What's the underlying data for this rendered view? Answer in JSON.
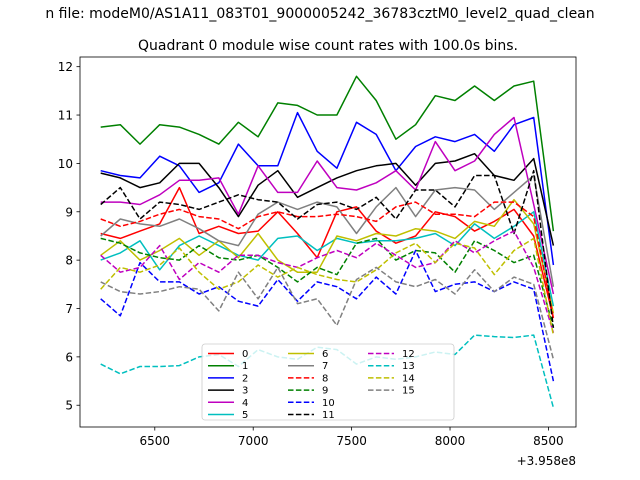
{
  "chart_data": {
    "type": "line",
    "suptitle": "n file: modeM0/AS1A11_083T01_9000005242_36783cztM0_level2_quad_clean",
    "title": "Quadrant 0 module wise count rates with 100.0s bins.",
    "xlabel": "",
    "ylabel": "",
    "x_offset_label": "+3.958e8",
    "xlim": [
      6120,
      8640
    ],
    "ylim": [
      4.55,
      12.2
    ],
    "xticks": [
      6500,
      7000,
      7500,
      8000,
      8500
    ],
    "xtick_labels": [
      "6500",
      "7000",
      "7500",
      "8000",
      "8500"
    ],
    "yticks": [
      5,
      6,
      7,
      8,
      9,
      10,
      11,
      12
    ],
    "ytick_labels": [
      "5",
      "6",
      "7",
      "8",
      "9",
      "10",
      "11",
      "12"
    ],
    "legend_position": "lower-center",
    "x": [
      6225,
      6325,
      6425,
      6525,
      6625,
      6725,
      6825,
      6925,
      7025,
      7125,
      7225,
      7325,
      7425,
      7525,
      7625,
      7725,
      7825,
      7925,
      8025,
      8125,
      8225,
      8325,
      8425,
      8525
    ],
    "series": [
      {
        "name": "0",
        "color": "#ff0000",
        "dash": "solid",
        "values": [
          8.55,
          8.45,
          8.6,
          8.75,
          9.5,
          8.55,
          8.7,
          8.55,
          8.6,
          9.0,
          8.55,
          8.05,
          9.0,
          9.1,
          8.6,
          8.35,
          8.5,
          9.0,
          8.9,
          8.6,
          8.8,
          9.05,
          8.5,
          6.8
        ]
      },
      {
        "name": "1",
        "color": "#008000",
        "dash": "solid",
        "values": [
          10.75,
          10.8,
          10.4,
          10.8,
          10.75,
          10.6,
          10.4,
          10.85,
          10.55,
          11.25,
          11.2,
          11.0,
          11.0,
          11.8,
          11.3,
          10.5,
          10.8,
          11.4,
          11.3,
          11.6,
          11.3,
          11.6,
          11.7,
          8.6
        ]
      },
      {
        "name": "2",
        "color": "#0000ff",
        "dash": "solid",
        "values": [
          9.85,
          9.75,
          9.7,
          10.15,
          9.95,
          9.4,
          9.6,
          10.4,
          9.95,
          9.95,
          11.05,
          10.25,
          9.9,
          10.85,
          10.6,
          9.85,
          10.35,
          10.55,
          10.45,
          10.6,
          10.25,
          10.8,
          10.95,
          7.9
        ]
      },
      {
        "name": "3",
        "color": "#000000",
        "dash": "solid",
        "values": [
          9.8,
          9.7,
          9.5,
          9.6,
          10.0,
          10.0,
          9.5,
          8.9,
          9.55,
          9.85,
          9.3,
          9.5,
          9.7,
          9.85,
          9.95,
          10.0,
          9.55,
          10.0,
          10.05,
          10.2,
          9.75,
          9.65,
          10.1,
          8.3
        ]
      },
      {
        "name": "4",
        "color": "#bf00bf",
        "dash": "solid",
        "values": [
          9.2,
          9.2,
          9.15,
          9.35,
          9.65,
          9.65,
          9.7,
          8.95,
          9.95,
          9.4,
          9.4,
          10.05,
          9.5,
          9.45,
          9.6,
          9.85,
          9.45,
          10.45,
          9.85,
          10.05,
          10.6,
          10.95,
          9.15,
          7.3
        ]
      },
      {
        "name": "5",
        "color": "#00bfbf",
        "dash": "solid",
        "values": [
          8.0,
          8.15,
          8.4,
          7.8,
          8.3,
          8.5,
          8.3,
          8.1,
          8.0,
          8.45,
          8.5,
          8.2,
          8.45,
          8.35,
          8.4,
          8.4,
          8.45,
          8.55,
          8.3,
          8.75,
          8.45,
          8.7,
          9.0,
          7.05
        ]
      },
      {
        "name": "6",
        "color": "#bfbf00",
        "dash": "solid",
        "values": [
          8.1,
          8.4,
          8.0,
          8.2,
          8.45,
          8.1,
          8.4,
          8.05,
          8.55,
          8.0,
          7.75,
          7.75,
          8.5,
          8.4,
          8.55,
          8.5,
          8.65,
          8.6,
          8.45,
          8.8,
          8.7,
          9.25,
          8.75,
          6.9
        ]
      },
      {
        "name": "7",
        "color": "#808080",
        "dash": "solid",
        "values": [
          8.5,
          8.85,
          8.75,
          8.7,
          8.85,
          8.65,
          8.4,
          8.3,
          8.95,
          9.2,
          9.05,
          9.2,
          9.1,
          8.55,
          9.1,
          9.5,
          8.9,
          9.45,
          9.5,
          9.45,
          9.05,
          9.4,
          9.75,
          7.45
        ]
      },
      {
        "name": "8",
        "color": "#ff0000",
        "dash": "dashed",
        "values": [
          8.85,
          8.7,
          8.8,
          8.95,
          9.05,
          8.9,
          8.85,
          8.65,
          8.9,
          9.0,
          8.9,
          8.9,
          8.95,
          8.9,
          8.8,
          9.1,
          9.2,
          8.95,
          8.95,
          8.9,
          9.2,
          9.2,
          8.9,
          6.8
        ]
      },
      {
        "name": "9",
        "color": "#008000",
        "dash": "dashed",
        "values": [
          8.45,
          8.35,
          8.15,
          8.05,
          8.0,
          8.3,
          8.05,
          8.0,
          8.1,
          7.85,
          7.55,
          7.85,
          7.7,
          8.35,
          8.45,
          8.0,
          8.2,
          8.15,
          7.75,
          8.4,
          8.2,
          7.95,
          8.1,
          6.6
        ]
      },
      {
        "name": "10",
        "color": "#0000ff",
        "dash": "dashed",
        "values": [
          7.2,
          6.85,
          7.95,
          7.55,
          7.55,
          7.3,
          7.45,
          7.15,
          7.05,
          7.6,
          7.15,
          7.55,
          7.45,
          7.2,
          7.65,
          7.3,
          8.2,
          7.35,
          7.5,
          7.55,
          7.35,
          7.55,
          7.4,
          5.5
        ]
      },
      {
        "name": "11",
        "color": "#000000",
        "dash": "dashed",
        "values": [
          9.15,
          9.5,
          8.85,
          9.2,
          9.15,
          9.05,
          9.2,
          9.35,
          9.25,
          9.2,
          8.85,
          9.15,
          9.2,
          9.05,
          9.3,
          8.85,
          9.45,
          9.45,
          9.1,
          9.75,
          9.75,
          8.55,
          9.85,
          6.6
        ]
      },
      {
        "name": "12",
        "color": "#bf00bf",
        "dash": "dashed",
        "values": [
          8.1,
          7.75,
          7.85,
          8.3,
          7.6,
          7.95,
          7.75,
          8.1,
          8.1,
          7.95,
          7.85,
          8.05,
          8.2,
          8.05,
          8.35,
          8.1,
          7.85,
          7.95,
          8.4,
          8.15,
          8.4,
          8.6,
          7.85,
          6.5
        ]
      },
      {
        "name": "13",
        "color": "#00bfbf",
        "dash": "dashed",
        "values": [
          5.85,
          5.65,
          5.8,
          5.8,
          5.82,
          6.0,
          6.05,
          5.8,
          6.15,
          6.0,
          5.95,
          6.2,
          6.15,
          5.85,
          6.0,
          5.95,
          6.0,
          6.1,
          6.05,
          6.45,
          6.42,
          6.4,
          6.45,
          4.95
        ]
      },
      {
        "name": "14",
        "color": "#bfbf00",
        "dash": "dashed",
        "values": [
          7.4,
          7.85,
          7.75,
          7.9,
          8.25,
          7.75,
          7.4,
          7.55,
          7.9,
          7.65,
          7.85,
          7.7,
          7.6,
          7.55,
          7.8,
          8.15,
          8.35,
          7.95,
          8.35,
          8.25,
          7.7,
          8.2,
          8.45,
          6.45
        ]
      },
      {
        "name": "15",
        "color": "#808080",
        "dash": "dashed",
        "values": [
          7.55,
          7.35,
          7.3,
          7.35,
          7.45,
          7.4,
          6.95,
          7.75,
          7.2,
          7.85,
          7.1,
          7.2,
          6.65,
          7.6,
          7.85,
          7.55,
          7.45,
          7.6,
          7.3,
          7.8,
          7.35,
          7.65,
          7.5,
          5.95
        ]
      }
    ]
  }
}
